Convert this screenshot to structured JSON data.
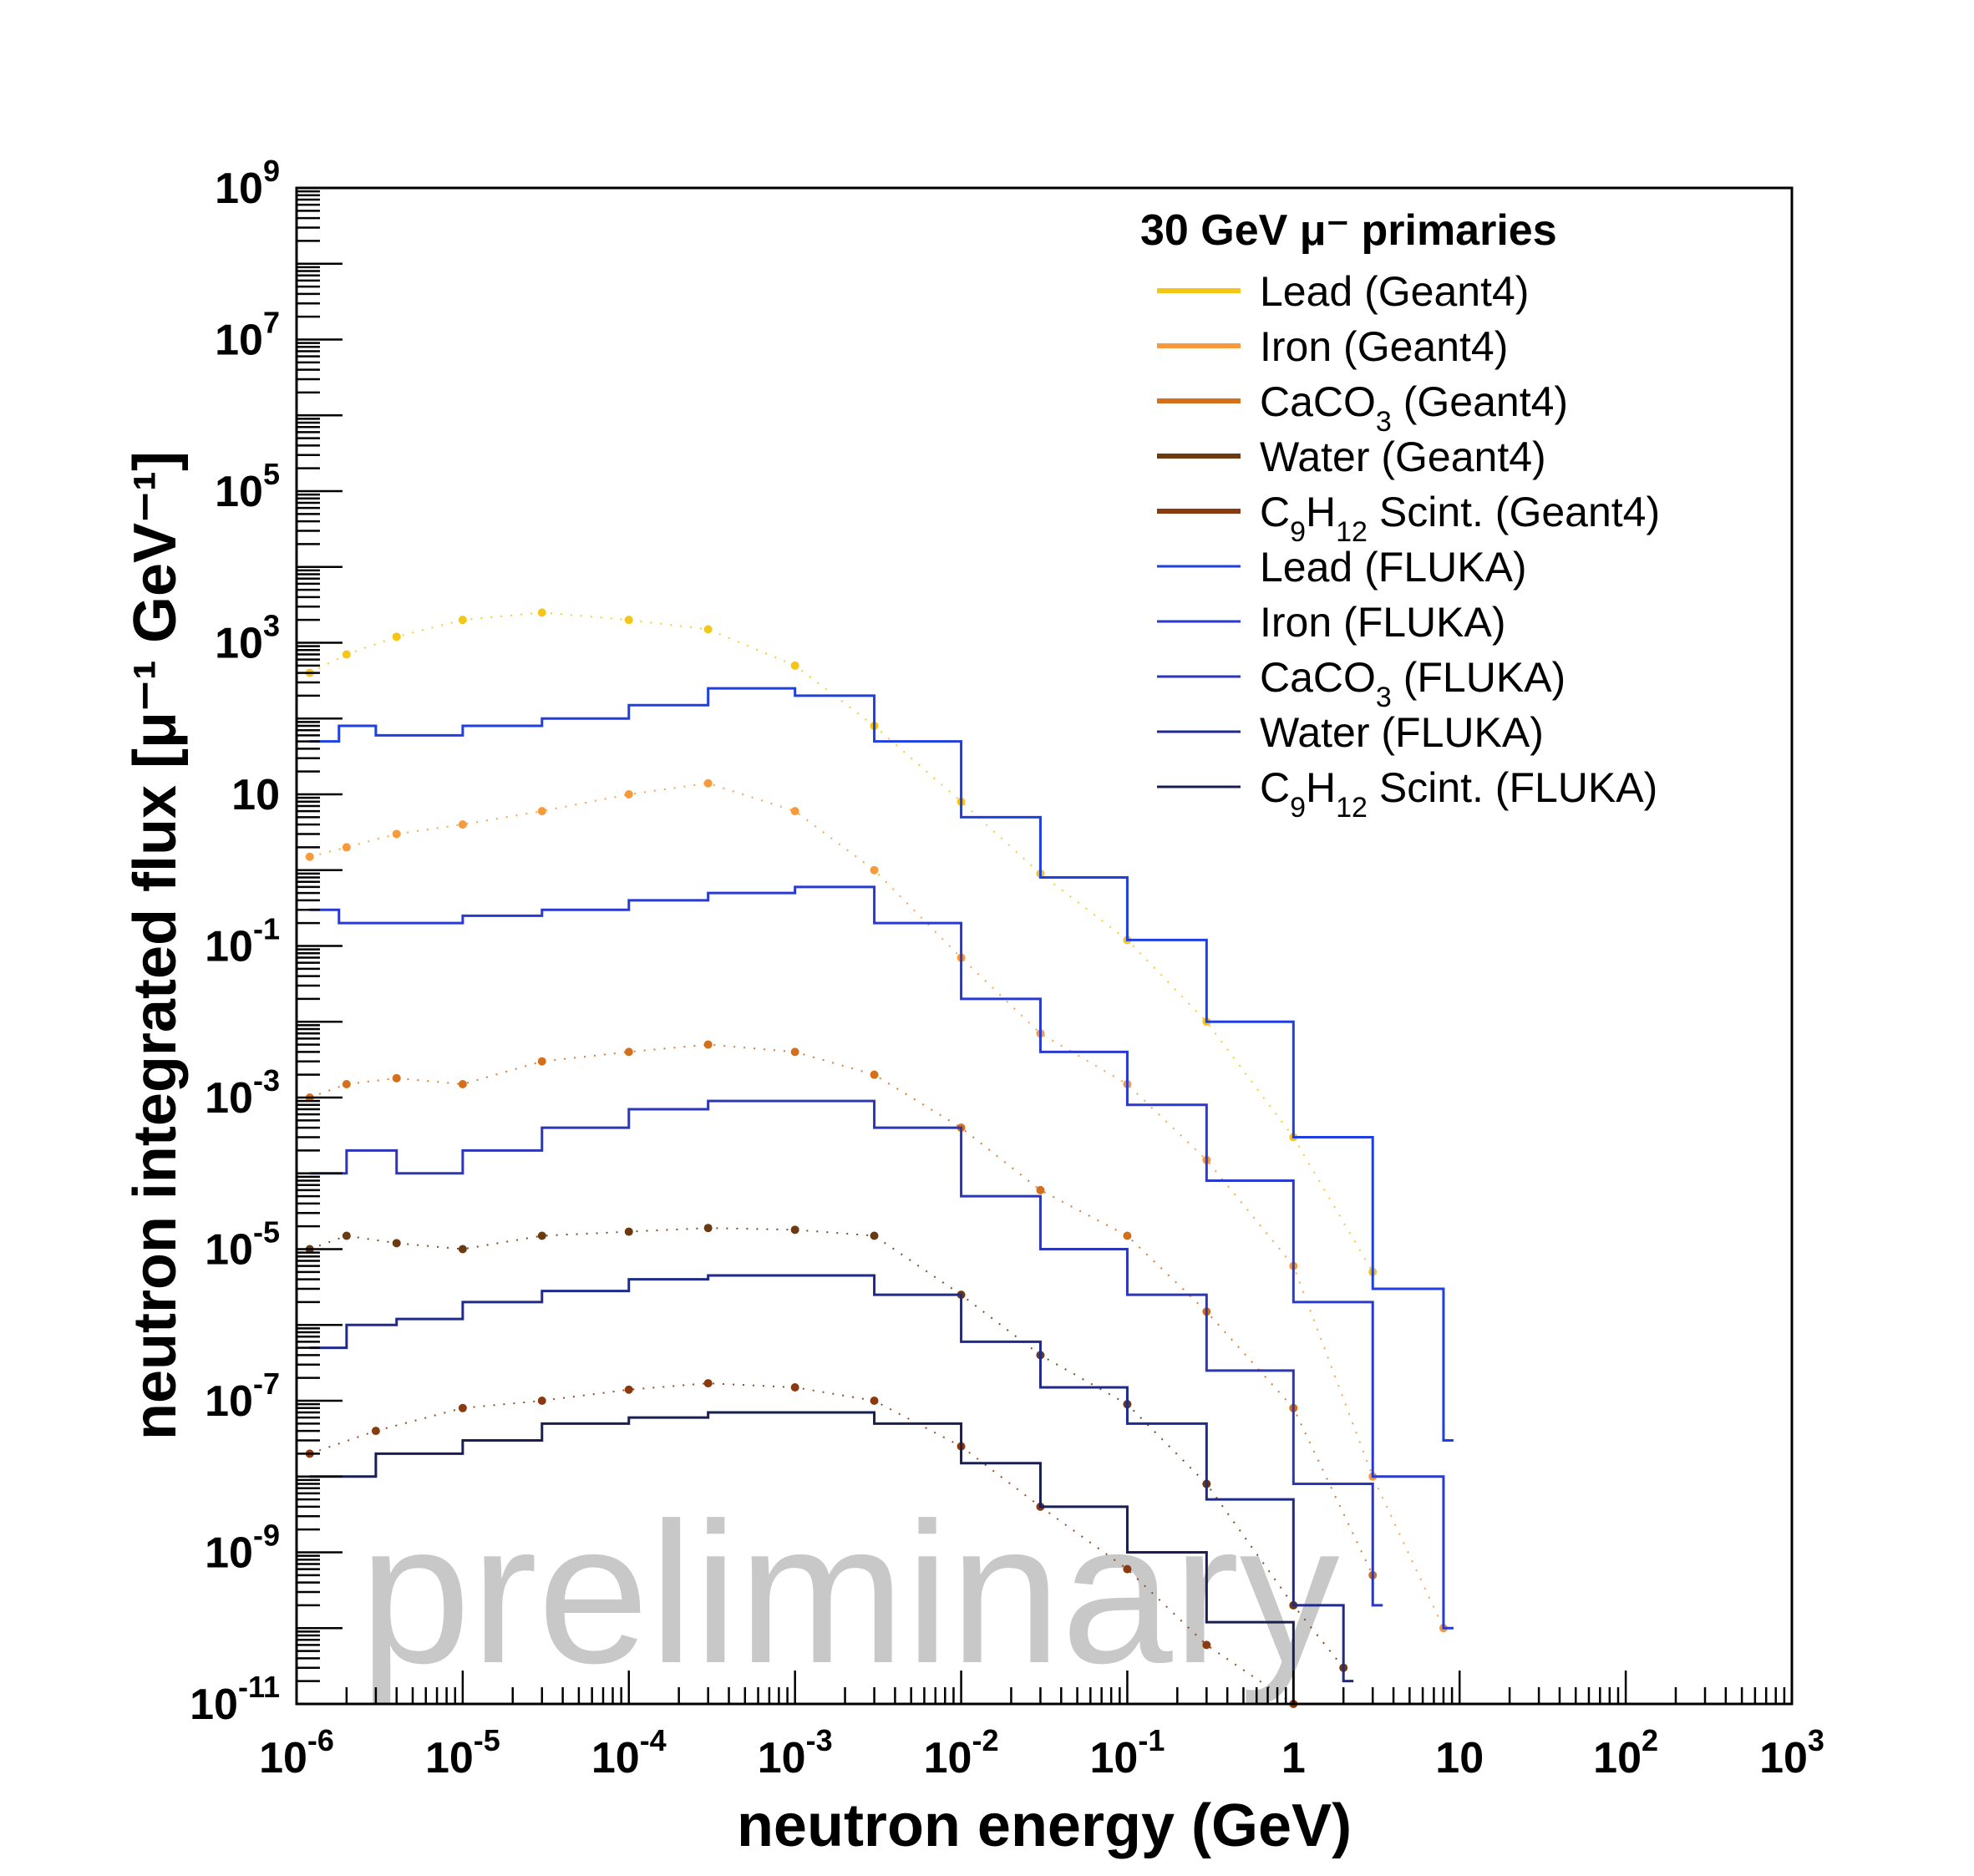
{
  "chart_data": {
    "type": "line",
    "xlabel": "neutron energy (GeV)",
    "ylabel": "neutron integrated flux [μ⁻¹ GeV⁻¹]",
    "xscale": "log",
    "yscale": "log",
    "xlim": [
      1e-06,
      1000
    ],
    "ylim": [
      1e-11,
      1000000000.0
    ],
    "grid": false,
    "legend_title": "30 GeV μ⁻ primaries",
    "legend_position": "top-right",
    "watermark": "preliminary",
    "x_ticks": [
      {
        "value": 1e-06,
        "base": "10",
        "exp": "-6"
      },
      {
        "value": 1e-05,
        "base": "10",
        "exp": "-5"
      },
      {
        "value": 0.0001,
        "base": "10",
        "exp": "-4"
      },
      {
        "value": 0.001,
        "base": "10",
        "exp": "-3"
      },
      {
        "value": 0.01,
        "base": "10",
        "exp": "-2"
      },
      {
        "value": 0.1,
        "base": "10",
        "exp": "-1"
      },
      {
        "value": 1,
        "base": "1",
        "exp": ""
      },
      {
        "value": 10,
        "base": "10",
        "exp": ""
      },
      {
        "value": 100,
        "base": "10",
        "exp": "2"
      },
      {
        "value": 1000,
        "base": "10",
        "exp": "3"
      }
    ],
    "y_ticks": [
      {
        "value": 1000000000.0,
        "base": "10",
        "exp": "9"
      },
      {
        "value": 10000000.0,
        "base": "10",
        "exp": "7"
      },
      {
        "value": 100000.0,
        "base": "10",
        "exp": "5"
      },
      {
        "value": 1000.0,
        "base": "10",
        "exp": "3"
      },
      {
        "value": 10,
        "base": "10",
        "exp": ""
      },
      {
        "value": 0.1,
        "base": "10",
        "exp": "-1"
      },
      {
        "value": 0.001,
        "base": "10",
        "exp": "-3"
      },
      {
        "value": 1e-05,
        "base": "10",
        "exp": "-5"
      },
      {
        "value": 1e-07,
        "base": "10",
        "exp": "-7"
      },
      {
        "value": 1e-09,
        "base": "10",
        "exp": "-9"
      },
      {
        "value": 1e-11,
        "base": "10",
        "exp": "-11"
      }
    ],
    "series": [
      {
        "name": "Lead (Geant4)",
        "label_main": "Lead (Geant4)",
        "style": "markers",
        "color": "#f5c518",
        "x": [
          1.2e-06,
          2e-06,
          4e-06,
          1e-05,
          3e-05,
          0.0001,
          0.0003,
          0.001,
          0.003,
          0.01,
          0.03,
          0.1,
          0.3,
          1,
          3
        ],
        "y": [
          400,
          700,
          1200,
          2000,
          2500,
          2000,
          1500,
          500,
          80,
          8,
          0.9,
          0.12,
          0.01,
          0.0003,
          5e-06
        ]
      },
      {
        "name": "Iron (Geant4)",
        "label_main": "Iron (Geant4)",
        "style": "markers",
        "color": "#f79a3c",
        "x": [
          1.2e-06,
          2e-06,
          4e-06,
          1e-05,
          3e-05,
          0.0001,
          0.0003,
          0.001,
          0.003,
          0.01,
          0.03,
          0.1,
          0.3,
          1,
          3,
          8
        ],
        "y": [
          1.5,
          2,
          3,
          4,
          6,
          10,
          14,
          6,
          1,
          0.07,
          0.007,
          0.0015,
          0.00015,
          6e-06,
          1e-08,
          1e-10
        ]
      },
      {
        "name": "CaCO3 (Geant4)",
        "label_main": "CaCO",
        "label_sub": "3",
        "label_rest": " (Geant4)",
        "style": "markers",
        "color": "#d4701c",
        "x": [
          1.2e-06,
          2e-06,
          4e-06,
          1e-05,
          3e-05,
          0.0001,
          0.0003,
          0.001,
          0.003,
          0.01,
          0.03,
          0.1,
          0.3,
          1,
          3
        ],
        "y": [
          0.001,
          0.0015,
          0.0018,
          0.0015,
          0.003,
          0.004,
          0.005,
          0.004,
          0.002,
          0.0004,
          6e-05,
          1.5e-05,
          1.5e-06,
          8e-08,
          5e-10
        ]
      },
      {
        "name": "Water (Geant4)",
        "label_main": "Water (Geant4)",
        "style": "markers",
        "color": "#6b3a10",
        "x": [
          1.2e-06,
          2e-06,
          4e-06,
          1e-05,
          3e-05,
          0.0001,
          0.0003,
          0.001,
          0.003,
          0.01,
          0.03,
          0.1,
          0.3,
          1,
          2
        ],
        "y": [
          1e-05,
          1.5e-05,
          1.2e-05,
          1e-05,
          1.5e-05,
          1.7e-05,
          1.9e-05,
          1.8e-05,
          1.5e-05,
          2.5e-06,
          4e-07,
          9e-08,
          8e-09,
          2e-10,
          3e-11
        ]
      },
      {
        "name": "C9H12 Scint. (Geant4)",
        "label_main": "C",
        "label_sub": "9",
        "label_mid": "H",
        "label_sub2": "12",
        "label_rest": " Scint. (Geant4)",
        "style": "markers",
        "color": "#8b3a10",
        "x": [
          1.2e-06,
          3e-06,
          1e-05,
          3e-05,
          0.0001,
          0.0003,
          0.001,
          0.003,
          0.01,
          0.03,
          0.1,
          0.3,
          1
        ],
        "y": [
          2e-08,
          4e-08,
          8e-08,
          1e-07,
          1.4e-07,
          1.7e-07,
          1.5e-07,
          1e-07,
          2.5e-08,
          4e-09,
          6e-10,
          6e-11,
          1e-11
        ]
      },
      {
        "name": "Lead (FLUKA)",
        "label_main": "Lead (FLUKA)",
        "style": "step",
        "color": "#1f3fe0",
        "x": [
          1.2e-06,
          1.8e-06,
          3e-06,
          1e-05,
          3e-05,
          0.0001,
          0.0003,
          0.001,
          0.003,
          0.01,
          0.03,
          0.1,
          0.3,
          1,
          3,
          8
        ],
        "y": [
          50,
          80,
          60,
          80,
          100,
          150,
          250,
          200,
          50,
          5,
          0.8,
          0.12,
          0.01,
          0.0003,
          3e-06,
          3e-08
        ]
      },
      {
        "name": "Iron (FLUKA)",
        "label_main": "Iron (FLUKA)",
        "style": "step",
        "color": "#2a3ad0",
        "x": [
          1.2e-06,
          1.8e-06,
          3e-06,
          1e-05,
          3e-05,
          0.0001,
          0.0003,
          0.001,
          0.003,
          0.01,
          0.03,
          0.1,
          0.3,
          1,
          3,
          8
        ],
        "y": [
          0.3,
          0.2,
          0.2,
          0.25,
          0.3,
          0.4,
          0.5,
          0.6,
          0.2,
          0.02,
          0.004,
          0.0008,
          8e-05,
          2e-06,
          1e-08,
          1e-10
        ]
      },
      {
        "name": "CaCO3 (FLUKA)",
        "label_main": "CaCO",
        "label_sub": "3",
        "label_rest": " (FLUKA)",
        "style": "step",
        "color": "#2b36b8",
        "x": [
          1.2e-06,
          2e-06,
          4e-06,
          1e-05,
          3e-05,
          0.0001,
          0.0003,
          0.001,
          0.003,
          0.01,
          0.03,
          0.1,
          0.3,
          1,
          3
        ],
        "y": [
          0.0001,
          0.0002,
          0.0001,
          0.0002,
          0.0004,
          0.0007,
          0.0009,
          0.0009,
          0.0004,
          5e-05,
          1e-05,
          2.5e-06,
          2.5e-07,
          8e-09,
          2e-10
        ]
      },
      {
        "name": "Water (FLUKA)",
        "label_main": "Water (FLUKA)",
        "style": "step",
        "color": "#1f2a8a",
        "x": [
          1.2e-06,
          2e-06,
          4e-06,
          1e-05,
          3e-05,
          0.0001,
          0.0003,
          0.001,
          0.003,
          0.01,
          0.03,
          0.1,
          0.3,
          1,
          2
        ],
        "y": [
          5e-07,
          1e-06,
          1.2e-06,
          2e-06,
          2.8e-06,
          4e-06,
          4.5e-06,
          4.5e-06,
          2.5e-06,
          6e-07,
          1.5e-07,
          5e-08,
          5e-09,
          2e-10,
          2e-11
        ]
      },
      {
        "name": "C9H12 Scint. (FLUKA)",
        "label_main": "C",
        "label_sub": "9",
        "label_mid": "H",
        "label_sub2": "12",
        "label_rest": " Scint. (FLUKA)",
        "style": "step",
        "color": "#1a1f50",
        "x": [
          1.2e-06,
          3e-06,
          1e-05,
          3e-05,
          0.0001,
          0.0003,
          0.001,
          0.003,
          0.01,
          0.03,
          0.1,
          0.3,
          1
        ],
        "y": [
          1e-08,
          2e-08,
          3e-08,
          5e-08,
          6e-08,
          7e-08,
          7e-08,
          5e-08,
          1.5e-08,
          4e-09,
          1e-09,
          1.2e-10,
          1e-11
        ]
      }
    ]
  }
}
